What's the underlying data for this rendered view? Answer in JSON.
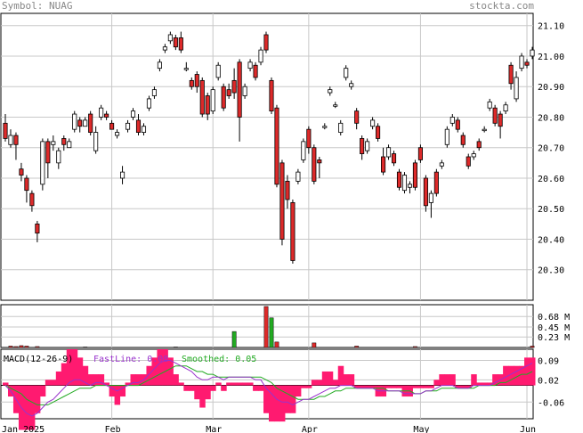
{
  "header": {
    "symbol": "Symbol: NUAG",
    "site": "stockta.com"
  },
  "colors": {
    "up": "#ffffff",
    "down": "#dd2a2a",
    "outline": "#000000",
    "grid": "#c8c8c8",
    "vol": "#dd2a2a",
    "volUp": "#22aa22",
    "macd": "#ff1a70",
    "fast": "#9933cc",
    "smooth": "#22aa22"
  },
  "chart_data": [
    {
      "type": "candlestick",
      "title": "Symbol: NUAG",
      "y_ticks": [
        "21.10",
        "21.00",
        "20.90",
        "20.80",
        "20.70",
        "20.60",
        "20.50",
        "20.40",
        "20.30"
      ],
      "ylim": [
        20.2,
        21.14
      ],
      "x_labels": [
        {
          "label": "Jan 2025",
          "index": 0
        },
        {
          "label": "Feb",
          "index": 20
        },
        {
          "label": "Mar",
          "index": 39
        },
        {
          "label": "Apr",
          "index": 57
        },
        {
          "label": "May",
          "index": 78
        },
        {
          "label": "Jun",
          "index": 98
        }
      ],
      "candles": [
        [
          20.78,
          20.73,
          20.81,
          20.72
        ],
        [
          20.71,
          20.74,
          20.76,
          20.7
        ],
        [
          20.74,
          20.71,
          20.75,
          20.66
        ],
        [
          20.63,
          20.61,
          20.65,
          20.59
        ],
        [
          20.6,
          20.56,
          20.61,
          20.52
        ],
        [
          20.55,
          20.51,
          20.56,
          20.49
        ],
        [
          20.45,
          20.42,
          20.46,
          20.39
        ],
        [
          20.58,
          20.72,
          20.73,
          20.56
        ],
        [
          20.72,
          20.65,
          20.73,
          20.6
        ],
        [
          20.71,
          20.72,
          20.74,
          20.69
        ],
        [
          20.65,
          20.69,
          20.7,
          20.63
        ],
        [
          20.73,
          20.71,
          20.74,
          20.69
        ],
        [
          20.7,
          20.72,
          20.73,
          20.7
        ],
        [
          20.76,
          20.81,
          20.82,
          20.75
        ],
        [
          20.79,
          20.77,
          20.8,
          20.75
        ],
        [
          20.77,
          20.79,
          20.8,
          20.77
        ],
        [
          20.81,
          20.75,
          20.82,
          20.74
        ],
        [
          20.69,
          20.75,
          20.77,
          20.68
        ],
        [
          20.8,
          20.83,
          20.84,
          20.79
        ],
        [
          20.81,
          20.8,
          20.82,
          20.79
        ],
        [
          20.78,
          20.76,
          20.79,
          20.76
        ],
        [
          20.74,
          20.75,
          20.76,
          20.73
        ],
        [
          20.6,
          20.62,
          20.64,
          20.58
        ],
        [
          20.76,
          20.78,
          20.79,
          20.75
        ],
        [
          20.8,
          20.82,
          20.83,
          20.79
        ],
        [
          20.79,
          20.75,
          20.81,
          20.74
        ],
        [
          20.75,
          20.77,
          20.78,
          20.74
        ],
        [
          20.83,
          20.86,
          20.87,
          20.82
        ],
        [
          20.87,
          20.89,
          20.9,
          20.86
        ],
        [
          20.96,
          20.98,
          20.99,
          20.95
        ],
        [
          21.02,
          21.03,
          21.04,
          21.01
        ],
        [
          21.05,
          21.07,
          21.08,
          21.04
        ],
        [
          21.06,
          21.03,
          21.07,
          21.02
        ],
        [
          21.06,
          21.02,
          21.08,
          21.01
        ],
        [
          20.96,
          20.96,
          20.98,
          20.95
        ],
        [
          20.92,
          20.9,
          20.93,
          20.89
        ],
        [
          20.94,
          20.9,
          20.95,
          20.88
        ],
        [
          20.92,
          20.81,
          20.93,
          20.8
        ],
        [
          20.87,
          20.81,
          20.88,
          20.79
        ],
        [
          20.82,
          20.89,
          20.9,
          20.81
        ],
        [
          20.93,
          20.97,
          20.98,
          20.92
        ],
        [
          20.9,
          20.83,
          20.91,
          20.82
        ],
        [
          20.89,
          20.87,
          20.91,
          20.86
        ],
        [
          20.92,
          20.88,
          20.96,
          20.86
        ],
        [
          20.98,
          20.8,
          20.99,
          20.72
        ],
        [
          20.87,
          20.9,
          20.91,
          20.86
        ],
        [
          20.96,
          20.98,
          20.99,
          20.95
        ],
        [
          20.97,
          20.93,
          20.98,
          20.92
        ],
        [
          20.98,
          21.02,
          21.03,
          20.97
        ],
        [
          21.07,
          21.02,
          21.08,
          21.01
        ],
        [
          20.92,
          20.82,
          20.93,
          20.81
        ],
        [
          20.83,
          20.58,
          20.84,
          20.57
        ],
        [
          20.65,
          20.4,
          20.66,
          20.38
        ],
        [
          20.59,
          20.53,
          20.61,
          20.5
        ],
        [
          20.52,
          20.33,
          20.53,
          20.32
        ],
        [
          20.59,
          20.62,
          20.63,
          20.58
        ],
        [
          20.66,
          20.72,
          20.73,
          20.65
        ],
        [
          20.76,
          20.7,
          20.77,
          20.68
        ],
        [
          20.7,
          20.59,
          20.71,
          20.58
        ],
        [
          20.66,
          20.65,
          20.67,
          20.6
        ],
        [
          20.77,
          20.77,
          20.78,
          20.76
        ],
        [
          20.88,
          20.89,
          20.9,
          20.87
        ],
        [
          20.84,
          20.84,
          20.85,
          20.83
        ],
        [
          20.75,
          20.78,
          20.79,
          20.74
        ],
        [
          20.93,
          20.96,
          20.97,
          20.92
        ],
        [
          20.9,
          20.91,
          20.92,
          20.89
        ],
        [
          20.82,
          20.78,
          20.83,
          20.76
        ],
        [
          20.73,
          20.68,
          20.74,
          20.66
        ],
        [
          20.69,
          20.72,
          20.73,
          20.68
        ],
        [
          20.77,
          20.79,
          20.8,
          20.76
        ],
        [
          20.77,
          20.73,
          20.78,
          20.72
        ],
        [
          20.67,
          20.62,
          20.7,
          20.61
        ],
        [
          20.67,
          20.7,
          20.71,
          20.66
        ],
        [
          20.68,
          20.65,
          20.69,
          20.64
        ],
        [
          20.62,
          20.57,
          20.63,
          20.56
        ],
        [
          20.56,
          20.61,
          20.62,
          20.55
        ],
        [
          20.57,
          20.58,
          20.59,
          20.55
        ],
        [
          20.65,
          20.57,
          20.66,
          20.56
        ],
        [
          20.7,
          20.66,
          20.71,
          20.65
        ],
        [
          20.6,
          20.51,
          20.61,
          20.49
        ],
        [
          20.52,
          20.55,
          20.56,
          20.47
        ],
        [
          20.62,
          20.55,
          20.63,
          20.54
        ],
        [
          20.64,
          20.65,
          20.66,
          20.63
        ],
        [
          20.71,
          20.76,
          20.77,
          20.7
        ],
        [
          20.78,
          20.8,
          20.81,
          20.77
        ],
        [
          20.79,
          20.76,
          20.8,
          20.75
        ],
        [
          20.74,
          20.71,
          20.75,
          20.7
        ],
        [
          20.67,
          20.64,
          20.68,
          20.63
        ],
        [
          20.67,
          20.68,
          20.69,
          20.66
        ],
        [
          20.72,
          20.7,
          20.73,
          20.69
        ],
        [
          20.76,
          20.76,
          20.77,
          20.75
        ],
        [
          20.83,
          20.85,
          20.86,
          20.82
        ],
        [
          20.83,
          20.78,
          20.84,
          20.77
        ],
        [
          20.81,
          20.77,
          20.82,
          20.73
        ],
        [
          20.82,
          20.84,
          20.85,
          20.81
        ],
        [
          20.97,
          20.91,
          20.98,
          20.89
        ],
        [
          20.86,
          20.93,
          20.95,
          20.85
        ],
        [
          20.96,
          21.0,
          21.01,
          20.95
        ],
        [
          20.98,
          20.97,
          20.99,
          20.96
        ],
        [
          21.0,
          21.02,
          21.03,
          20.99
        ]
      ],
      "volume": {
        "ticks": [
          "0.68 M",
          "0.45 M",
          "0.23 M"
        ],
        "ylim": [
          0,
          0.9
        ],
        "bars": [
          [
            1,
            0.03
          ],
          [
            2,
            0.02
          ],
          [
            3,
            0.04
          ],
          [
            4,
            0.03
          ],
          [
            6,
            0.02
          ],
          [
            15,
            0.01
          ],
          [
            32,
            0.01
          ],
          [
            43,
            0.35
          ],
          [
            49,
            0.9
          ],
          [
            50,
            0.65
          ],
          [
            51,
            0.12
          ],
          [
            58,
            0.1
          ],
          [
            66,
            0.03
          ],
          [
            77,
            0.02
          ],
          [
            99,
            0.03
          ]
        ],
        "up_indices": [
          43,
          50
        ]
      },
      "macd": {
        "title": "MACD(12-26-9)",
        "fastline_label": "FastLine: 0.08",
        "smoothed_label": "Smoothed: 0.05",
        "ticks": [
          "0.09",
          "0.02",
          "-0.06"
        ],
        "ylim": [
          -0.12,
          0.13
        ],
        "fast": [
          0.0,
          -0.02,
          -0.05,
          -0.08,
          -0.1,
          -0.11,
          -0.1,
          -0.08,
          -0.06,
          -0.05,
          -0.03,
          -0.01,
          0.01,
          0.02,
          0.02,
          0.01,
          0.0,
          0.01,
          0.01,
          0.0,
          -0.01,
          -0.02,
          -0.01,
          0.0,
          0.01,
          0.01,
          0.02,
          0.04,
          0.06,
          0.08,
          0.09,
          0.09,
          0.08,
          0.07,
          0.06,
          0.05,
          0.03,
          0.02,
          0.02,
          0.03,
          0.03,
          0.02,
          0.03,
          0.03,
          0.03,
          0.03,
          0.03,
          0.02,
          0.02,
          -0.01,
          -0.03,
          -0.05,
          -0.06,
          -0.06,
          -0.07,
          -0.06,
          -0.05,
          -0.05,
          -0.04,
          -0.03,
          -0.02,
          -0.01,
          -0.01,
          0.0,
          0.0,
          0.0,
          -0.01,
          -0.01,
          -0.01,
          -0.01,
          -0.02,
          -0.02,
          -0.02,
          -0.02,
          -0.02,
          -0.03,
          -0.03,
          -0.03,
          -0.03,
          -0.02,
          -0.02,
          -0.01,
          0.0,
          0.0,
          0.0,
          -0.01,
          -0.01,
          -0.01,
          0.0,
          0.0,
          0.0,
          0.0,
          0.01,
          0.02,
          0.03,
          0.04,
          0.05,
          0.06,
          0.07,
          0.08
        ],
        "smooth": [
          0.0,
          -0.01,
          -0.02,
          -0.03,
          -0.05,
          -0.06,
          -0.07,
          -0.07,
          -0.07,
          -0.06,
          -0.05,
          -0.04,
          -0.03,
          -0.02,
          -0.01,
          -0.01,
          -0.01,
          0.0,
          0.0,
          0.0,
          0.0,
          0.0,
          0.0,
          0.0,
          0.0,
          0.0,
          0.01,
          0.02,
          0.03,
          0.04,
          0.05,
          0.06,
          0.07,
          0.07,
          0.07,
          0.06,
          0.05,
          0.05,
          0.04,
          0.04,
          0.03,
          0.03,
          0.03,
          0.03,
          0.03,
          0.03,
          0.03,
          0.03,
          0.03,
          0.02,
          0.01,
          -0.01,
          -0.02,
          -0.03,
          -0.04,
          -0.05,
          -0.05,
          -0.05,
          -0.05,
          -0.04,
          -0.04,
          -0.03,
          -0.02,
          -0.02,
          -0.01,
          -0.01,
          -0.01,
          -0.01,
          -0.01,
          -0.01,
          -0.01,
          -0.01,
          -0.02,
          -0.02,
          -0.02,
          -0.02,
          -0.02,
          -0.03,
          -0.03,
          -0.02,
          -0.02,
          -0.02,
          -0.01,
          -0.01,
          -0.01,
          -0.01,
          -0.01,
          -0.01,
          -0.01,
          0.0,
          0.0,
          0.0,
          0.0,
          0.01,
          0.01,
          0.02,
          0.03,
          0.04,
          0.04,
          0.05
        ]
      }
    }
  ]
}
